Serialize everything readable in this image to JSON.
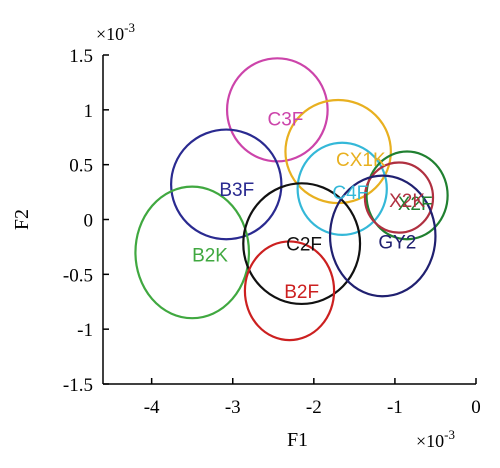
{
  "chart_data": {
    "type": "scatter",
    "xlabel": "F1",
    "ylabel": "F2",
    "x_multiplier_label": "×10",
    "x_multiplier_exp": "-3",
    "y_multiplier_label": "×10",
    "y_multiplier_exp": "-3",
    "xlim": [
      -4.6,
      0
    ],
    "ylim": [
      -1.5,
      1.5
    ],
    "x_ticks": [
      {
        "value": -4,
        "label": "-4"
      },
      {
        "value": -3,
        "label": "-3"
      },
      {
        "value": -2,
        "label": "-2"
      },
      {
        "value": -1,
        "label": "-1"
      },
      {
        "value": 0,
        "label": "0"
      }
    ],
    "y_ticks": [
      {
        "value": 1.5,
        "label": "1.5"
      },
      {
        "value": 1,
        "label": "1"
      },
      {
        "value": 0.5,
        "label": "0.5"
      },
      {
        "value": 0,
        "label": "0"
      },
      {
        "value": -0.5,
        "label": "-0.5"
      },
      {
        "value": -1,
        "label": "-1"
      },
      {
        "value": -1.5,
        "label": "-1.5"
      }
    ],
    "grid": false,
    "series": [
      {
        "name": "C3F",
        "color": "#cc44aa",
        "cx": -2.45,
        "cy": 1.0,
        "rx": 0.62,
        "ry": 0.47,
        "label_x": -2.35,
        "label_y": 0.92
      },
      {
        "name": "CX1K",
        "color": "#e8b020",
        "cx": -1.7,
        "cy": 0.62,
        "rx": 0.65,
        "ry": 0.47,
        "label_x": -1.42,
        "label_y": 0.55
      },
      {
        "name": "B3F",
        "color": "#2a2a90",
        "cx": -3.08,
        "cy": 0.32,
        "rx": 0.68,
        "ry": 0.5,
        "label_x": -2.95,
        "label_y": 0.28
      },
      {
        "name": "C4F",
        "color": "#34b8d8",
        "cx": -1.65,
        "cy": 0.28,
        "rx": 0.55,
        "ry": 0.42,
        "label_x": -1.55,
        "label_y": 0.25
      },
      {
        "name": "X2F",
        "color": "#208030",
        "cx": -0.85,
        "cy": 0.22,
        "rx": 0.5,
        "ry": 0.4,
        "label_x": -0.75,
        "label_y": 0.15
      },
      {
        "name": "X2K",
        "color": "#b03040",
        "cx": -0.95,
        "cy": 0.2,
        "rx": 0.42,
        "ry": 0.32,
        "label_x": -0.85,
        "label_y": 0.18
      },
      {
        "name": "B2K",
        "color": "#40a840",
        "cx": -3.5,
        "cy": -0.3,
        "rx": 0.7,
        "ry": 0.6,
        "label_x": -3.28,
        "label_y": -0.32
      },
      {
        "name": "C2F",
        "color": "#111111",
        "cx": -2.15,
        "cy": -0.22,
        "rx": 0.72,
        "ry": 0.55,
        "label_x": -2.12,
        "label_y": -0.22
      },
      {
        "name": "GY2",
        "color": "#202070",
        "cx": -1.15,
        "cy": -0.15,
        "rx": 0.65,
        "ry": 0.55,
        "label_x": -0.97,
        "label_y": -0.2
      },
      {
        "name": "B2F",
        "color": "#cc2020",
        "cx": -2.3,
        "cy": -0.65,
        "rx": 0.55,
        "ry": 0.45,
        "label_x": -2.15,
        "label_y": -0.65
      }
    ]
  }
}
